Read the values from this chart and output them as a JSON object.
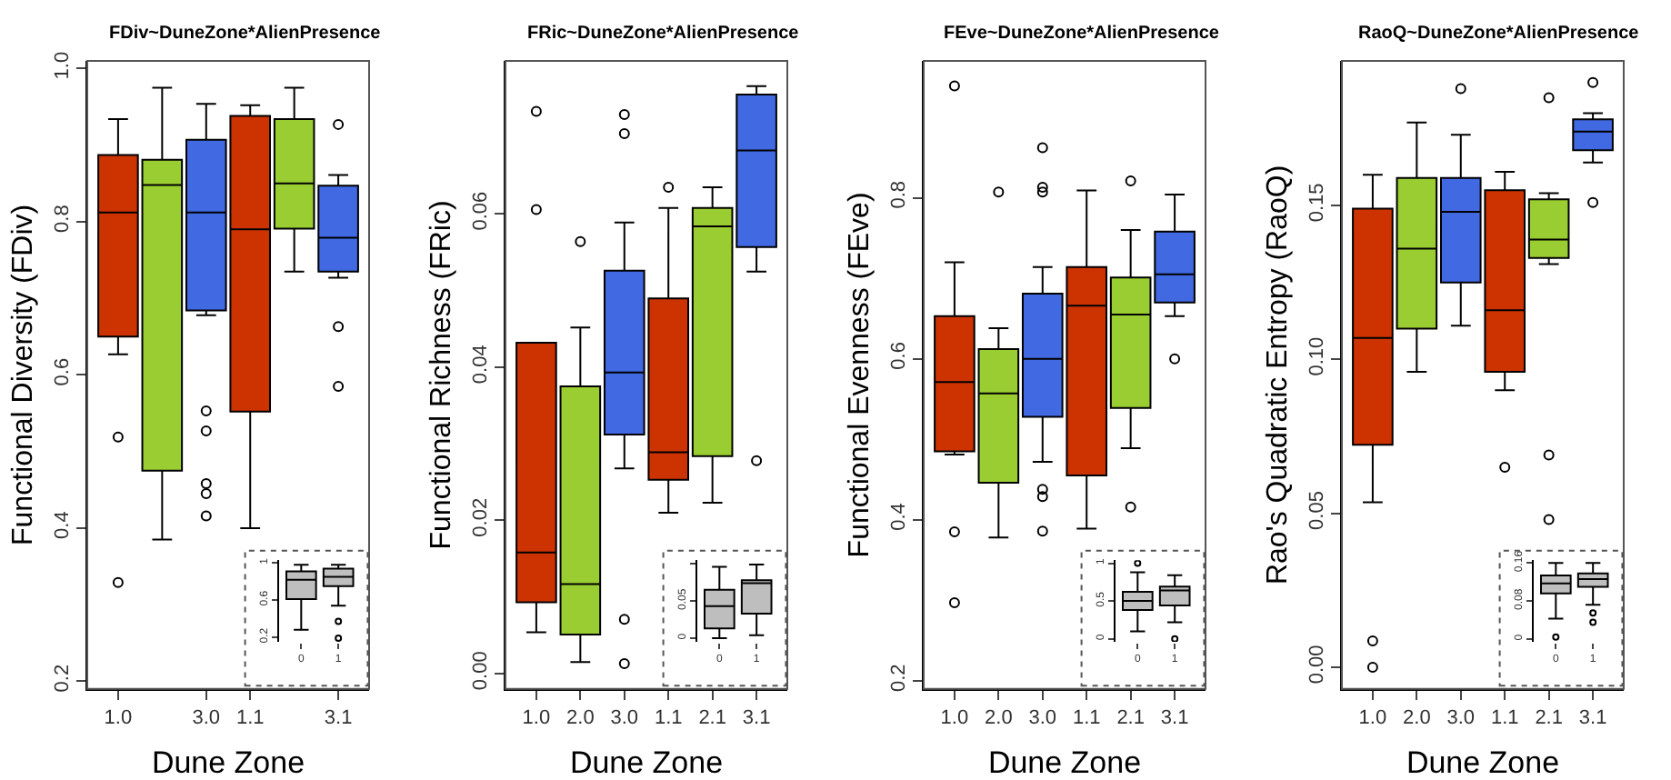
{
  "chart_data": [
    {
      "type": "box",
      "title": "FDiv~DuneZone*AlienPresence",
      "xlabel": "Dune Zone",
      "ylabel": "Functional Diversity (FDiv)",
      "categories": [
        "1.0",
        null,
        "3.0",
        "1.1",
        null,
        "3.1"
      ],
      "colors": [
        "#cc3300",
        "#9acd32",
        "#4169e1",
        "#cc3300",
        "#9acd32",
        "#4169e1"
      ],
      "boxes": [
        {
          "low": 0.627,
          "q1": 0.65,
          "median": 0.812,
          "q3": 0.887,
          "high": 0.934,
          "outliers": [
            0.519,
            0.329
          ]
        },
        {
          "low": 0.385,
          "q1": 0.475,
          "median": 0.848,
          "q3": 0.881,
          "high": 0.975
        },
        {
          "low": 0.678,
          "q1": 0.684,
          "median": 0.812,
          "q3": 0.907,
          "high": 0.954,
          "outliers": [
            0.553,
            0.527,
            0.458,
            0.445,
            0.416
          ]
        },
        {
          "low": 0.4,
          "q1": 0.552,
          "median": 0.79,
          "q3": 0.938,
          "high": 0.952
        },
        {
          "low": 0.735,
          "q1": 0.791,
          "median": 0.85,
          "q3": 0.934,
          "high": 0.975
        },
        {
          "low": 0.727,
          "q1": 0.735,
          "median": 0.779,
          "q3": 0.847,
          "high": 0.861,
          "outliers": [
            0.927,
            0.663,
            0.585
          ]
        }
      ],
      "ylim": [
        0.19,
        1.01
      ],
      "yticks": [
        {
          "value": 0.2,
          "label": "0.2"
        },
        {
          "value": 0.4,
          "label": "0.4"
        },
        {
          "value": 0.6,
          "label": "0.6"
        },
        {
          "value": 0.8,
          "label": "0.8"
        },
        {
          "value": 1.0,
          "label": "1.0"
        }
      ]
    },
    {
      "type": "box",
      "categories": [
        "0",
        "1"
      ],
      "colors": [
        "#bebebe",
        "#bebebe"
      ],
      "boxes": [
        {
          "low": 0.28,
          "q1": 0.61,
          "median": 0.82,
          "q3": 0.91,
          "high": 0.98
        },
        {
          "low": 0.54,
          "q1": 0.75,
          "median": 0.85,
          "q3": 0.94,
          "high": 0.98,
          "outliers": [
            0.37,
            0.19
          ]
        }
      ],
      "ylim": [
        0.15,
        1.03
      ],
      "yticks": [
        0.2,
        0.6,
        1
      ]
    },
    {
      "type": "box",
      "title": "FRic~DuneZone*AlienPresence",
      "xlabel": "Dune Zone",
      "ylabel": "Functional Richness (FRic)",
      "categories": [
        "1.0",
        "2.0",
        "3.0",
        "1.1",
        "2.1",
        "3.1"
      ],
      "colors": [
        "#cc3300",
        "#9acd32",
        "#4169e1",
        "#cc3300",
        "#9acd32",
        "#4169e1"
      ],
      "boxes": [
        {
          "low": 0.0054,
          "q1": 0.0093,
          "median": 0.0158,
          "q3": 0.0432,
          "high": 0.0432,
          "outliers": [
            0.0734,
            0.0606
          ]
        },
        {
          "low": 0.0015,
          "q1": 0.0051,
          "median": 0.0117,
          "q3": 0.0375,
          "high": 0.0452,
          "outliers": [
            0.0564
          ]
        },
        {
          "low": 0.0268,
          "q1": 0.0312,
          "median": 0.0393,
          "q3": 0.0526,
          "high": 0.0589,
          "outliers": [
            0.073,
            0.0705,
            0.0071,
            0.0013
          ]
        },
        {
          "low": 0.021,
          "q1": 0.0253,
          "median": 0.0289,
          "q3": 0.049,
          "high": 0.0608,
          "outliers": [
            0.0635
          ]
        },
        {
          "low": 0.0223,
          "q1": 0.0284,
          "median": 0.0584,
          "q3": 0.0608,
          "high": 0.0635
        },
        {
          "low": 0.0525,
          "q1": 0.0557,
          "median": 0.0683,
          "q3": 0.0756,
          "high": 0.0767,
          "outliers": [
            0.0278
          ]
        }
      ],
      "ylim": [
        -0.002,
        0.08
      ],
      "yticks": [
        {
          "value": 0,
          "label": "0.00"
        },
        {
          "value": 0.02,
          "label": "0.02"
        },
        {
          "value": 0.04,
          "label": "0.04"
        },
        {
          "value": 0.06,
          "label": "0.06"
        }
      ]
    },
    {
      "type": "box",
      "categories": [
        "0",
        "1"
      ],
      "colors": [
        "#bebebe",
        "#bebebe"
      ],
      "boxes": [
        {
          "low": 0.0,
          "q1": 0.013,
          "median": 0.043,
          "q3": 0.065,
          "high": 0.096
        },
        {
          "low": 0.004,
          "q1": 0.033,
          "median": 0.074,
          "q3": 0.078,
          "high": 0.099
        }
      ],
      "ylim": [
        -0.005,
        0.105
      ],
      "yticks": [
        0,
        0.05,
        {
          "value": 0.1,
          "label": null
        }
      ]
    },
    {
      "type": "box",
      "title": "FEve~DuneZone*AlienPresence",
      "xlabel": "Dune Zone",
      "ylabel": "Functional Evenness (FEve)",
      "categories": [
        "1.0",
        "2.0",
        "3.0",
        "1.1",
        "2.1",
        "3.1"
      ],
      "colors": [
        "#cc3300",
        "#9acd32",
        "#4169e1",
        "#cc3300",
        "#9acd32",
        "#4169e1"
      ],
      "boxes": [
        {
          "low": 0.481,
          "q1": 0.485,
          "median": 0.571,
          "q3": 0.653,
          "high": 0.72,
          "outliers": [
            0.939,
            0.385,
            0.297
          ]
        },
        {
          "low": 0.378,
          "q1": 0.446,
          "median": 0.557,
          "q3": 0.612,
          "high": 0.638,
          "outliers": [
            0.807
          ]
        },
        {
          "low": 0.472,
          "q1": 0.528,
          "median": 0.6,
          "q3": 0.681,
          "high": 0.714,
          "outliers": [
            0.862,
            0.813,
            0.807,
            0.438,
            0.429,
            0.386
          ]
        },
        {
          "low": 0.389,
          "q1": 0.455,
          "median": 0.666,
          "q3": 0.714,
          "high": 0.809
        },
        {
          "low": 0.489,
          "q1": 0.539,
          "median": 0.655,
          "q3": 0.701,
          "high": 0.76,
          "outliers": [
            0.821,
            0.416
          ]
        },
        {
          "low": 0.653,
          "q1": 0.67,
          "median": 0.705,
          "q3": 0.758,
          "high": 0.804,
          "outliers": [
            0.6
          ]
        }
      ],
      "ylim": [
        0.19,
        0.97
      ],
      "yticks": [
        0.2,
        0.4,
        0.6,
        0.8
      ]
    },
    {
      "type": "box",
      "categories": [
        "0",
        "1"
      ],
      "colors": [
        "#bebebe",
        "#bebebe"
      ],
      "boxes": [
        {
          "low": 0.1,
          "q1": 0.38,
          "median": 0.5,
          "q3": 0.62,
          "high": 0.88,
          "outliers": [
            1.0
          ]
        },
        {
          "low": 0.22,
          "q1": 0.44,
          "median": 0.64,
          "q3": 0.69,
          "high": 0.84,
          "outliers": [
            0.0
          ]
        }
      ],
      "ylim": [
        -0.04,
        1.04
      ],
      "yticks": [
        0,
        0.5,
        1
      ]
    },
    {
      "type": "box",
      "title": "RaoQ~DuneZone*AlienPresence",
      "xlabel": "Dune Zone",
      "ylabel": "Rao's Quadratic Entropy (RaoQ)",
      "categories": [
        "1.0",
        "2.0",
        "3.0",
        "1.1",
        "2.1",
        "3.1"
      ],
      "colors": [
        "#cc3300",
        "#9acd32",
        "#4169e1",
        "#cc3300",
        "#9acd32",
        "#4169e1"
      ],
      "boxes": [
        {
          "low": 0.0536,
          "q1": 0.0723,
          "median": 0.107,
          "q3": 0.149,
          "high": 0.16,
          "outliers": [
            0.0086,
            0.0
          ]
        },
        {
          "low": 0.096,
          "q1": 0.11,
          "median": 0.136,
          "q3": 0.159,
          "high": 0.177
        },
        {
          "low": 0.111,
          "q1": 0.125,
          "median": 0.148,
          "q3": 0.159,
          "high": 0.173,
          "outliers": [
            0.188
          ]
        },
        {
          "low": 0.09,
          "q1": 0.096,
          "median": 0.116,
          "q3": 0.155,
          "high": 0.161,
          "outliers": [
            0.065
          ]
        },
        {
          "low": 0.131,
          "q1": 0.133,
          "median": 0.139,
          "q3": 0.152,
          "high": 0.154,
          "outliers": [
            0.185,
            0.069,
            0.048
          ]
        },
        {
          "low": 0.164,
          "q1": 0.168,
          "median": 0.174,
          "q3": 0.178,
          "high": 0.18,
          "outliers": [
            0.19,
            0.151
          ]
        }
      ],
      "ylim": [
        -0.007,
        0.197
      ],
      "yticks": [
        {
          "value": 0,
          "label": "0.00"
        },
        {
          "value": 0.05,
          "label": "0.05"
        },
        {
          "value": 0.1,
          "label": "0.10"
        },
        {
          "value": 0.15,
          "label": "0.15"
        }
      ]
    },
    {
      "type": "box",
      "categories": [
        "0",
        "1"
      ],
      "colors": [
        "#bebebe",
        "#bebebe"
      ],
      "boxes": [
        {
          "low": 0.043,
          "q1": 0.096,
          "median": 0.117,
          "q3": 0.134,
          "high": 0.16,
          "outliers": [
            0.004
          ]
        },
        {
          "low": 0.072,
          "q1": 0.11,
          "median": 0.126,
          "q3": 0.138,
          "high": 0.16,
          "outliers": [
            0.055,
            0.035
          ]
        }
      ],
      "ylim": [
        -0.006,
        0.166
      ],
      "yticks": [
        0,
        0.08,
        0.16
      ]
    }
  ]
}
